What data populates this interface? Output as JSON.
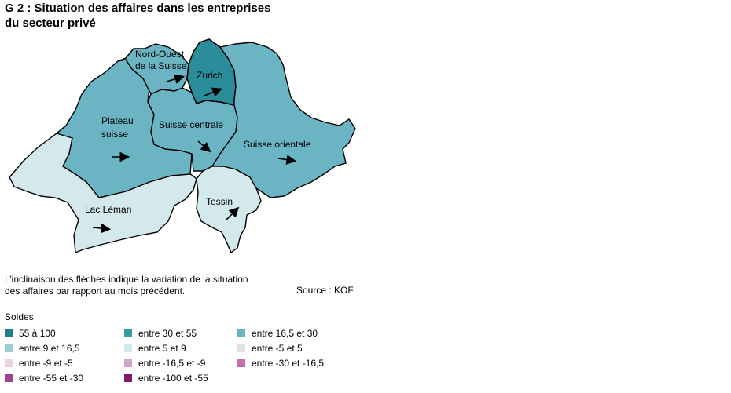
{
  "title_line1": "G 2 : Situation des affaires dans les entreprises",
  "title_line2": "du secteur privé",
  "colors": {
    "dark_teal": "#2b8c9a",
    "mid_teal": "#6ab4c4",
    "pale": "#d4e9ec",
    "border": "#000000"
  },
  "regions": [
    {
      "label_lines": [
        "Nord-Ouest",
        "de la Suisse"
      ],
      "category": "entre 16,5 et 30",
      "arrow": "up-right"
    },
    {
      "label_lines": [
        "Zurich"
      ],
      "category": "entre 30 et 55",
      "arrow": "up-right"
    },
    {
      "label_lines": [
        "Plateau",
        "suisse"
      ],
      "category": "entre 16,5 et 30",
      "arrow": "right"
    },
    {
      "label_lines": [
        "Suisse centrale"
      ],
      "category": "entre 16,5 et 30",
      "arrow": "down-right"
    },
    {
      "label_lines": [
        "Suisse orientale"
      ],
      "category": "entre 16,5 et 30",
      "arrow": "slight-down-right"
    },
    {
      "label_lines": [
        "Lac Léman"
      ],
      "category": "entre 5 et 9",
      "arrow": "right"
    },
    {
      "label_lines": [
        "Tessin"
      ],
      "category": "entre 5 et 9",
      "arrow": "up-right"
    }
  ],
  "note_line1": "L’inclinaison des flèches indique la variation de la situation",
  "note_line2": "des affaires par rapport au mois précédent.",
  "source": "Source : KOF",
  "legend_title": "Soldes",
  "legend": [
    {
      "label": "55 à 100",
      "color": "#1f7f8f"
    },
    {
      "label": "entre 30 et 55",
      "color": "#3a9aa8"
    },
    {
      "label": "entre 16,5 et 30",
      "color": "#6ab4c4"
    },
    {
      "label": "entre 9 et 16,5",
      "color": "#9fcdd6"
    },
    {
      "label": "entre 5 et 9",
      "color": "#d4e9ec"
    },
    {
      "label": "entre -5 et 5",
      "color": "#e2e2e2"
    },
    {
      "label": "entre -9 et -5",
      "color": "#ead3e3"
    },
    {
      "label": "entre -16,5 et -9",
      "color": "#d9a3c9"
    },
    {
      "label": "entre -30 et -16,5",
      "color": "#c46faa"
    },
    {
      "label": "entre -55 et -30",
      "color": "#a3418a"
    },
    {
      "label": "entre -100 et -55",
      "color": "#851a6d"
    }
  ]
}
